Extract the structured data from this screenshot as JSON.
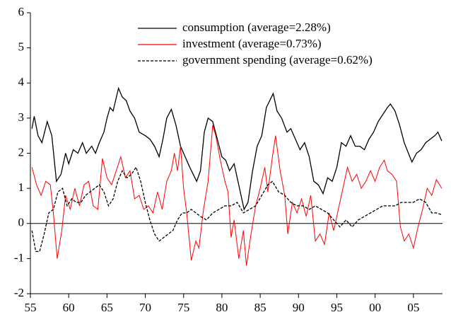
{
  "chart_data": {
    "type": "line",
    "xlim": [
      1955,
      2008.8
    ],
    "xticks": [
      {
        "value": 1955,
        "label": "55"
      },
      {
        "value": 1960,
        "label": "60"
      },
      {
        "value": 1965,
        "label": "65"
      },
      {
        "value": 1970,
        "label": "70"
      },
      {
        "value": 1975,
        "label": "75"
      },
      {
        "value": 1980,
        "label": "80"
      },
      {
        "value": 1985,
        "label": "85"
      },
      {
        "value": 1990,
        "label": "90"
      },
      {
        "value": 1995,
        "label": "95"
      },
      {
        "value": 2000,
        "label": "00"
      },
      {
        "value": 2005,
        "label": "05"
      }
    ],
    "ylim": [
      -2,
      6
    ],
    "yticks": [
      -2,
      -1,
      0,
      1,
      2,
      3,
      4,
      5,
      6
    ],
    "zero_line": true,
    "legend": "top-center",
    "series": [
      {
        "name": "consumption (average=2.28%)",
        "color": "#000000",
        "linestyle": "solid",
        "x": [
          1955.2,
          1955.5,
          1956,
          1956.5,
          1957.2,
          1957.8,
          1958.4,
          1959,
          1959.6,
          1960,
          1960.6,
          1961.2,
          1961.8,
          1962.3,
          1963,
          1963.5,
          1964,
          1964.6,
          1965,
          1965.4,
          1965.8,
          1966.5,
          1967,
          1967.5,
          1968,
          1968.6,
          1969.2,
          1970,
          1970.6,
          1971.2,
          1971.8,
          1972.3,
          1972.8,
          1973.4,
          1974,
          1974.6,
          1975.2,
          1975.8,
          1976.7,
          1977.2,
          1977.7,
          1978.2,
          1978.8,
          1979.4,
          1980,
          1980.5,
          1981,
          1981.6,
          1982.3,
          1982.9,
          1983.4,
          1984,
          1984.6,
          1985.2,
          1985.8,
          1986.7,
          1987.2,
          1987.8,
          1988.5,
          1989,
          1989.6,
          1990.2,
          1990.8,
          1991.4,
          1992,
          1992.6,
          1993.2,
          1993.8,
          1994.4,
          1995,
          1995.6,
          1996.2,
          1996.8,
          1997.4,
          1998,
          1998.6,
          1999.2,
          1999.8,
          2000.4,
          2001,
          2001.6,
          2002,
          2002.6,
          2003.2,
          2003.8,
          2004.8,
          2005.4,
          2006,
          2006.6,
          2007.2,
          2007.8,
          2008.2,
          2008.7
        ],
        "values": [
          2.7,
          3.05,
          2.5,
          2.3,
          2.9,
          2.5,
          1.2,
          1.4,
          2.0,
          1.7,
          2.1,
          2.0,
          2.3,
          2.0,
          2.2,
          2.0,
          2.3,
          2.6,
          3.0,
          3.3,
          3.2,
          3.85,
          3.6,
          3.5,
          3.2,
          3.0,
          2.6,
          2.5,
          2.4,
          2.2,
          1.9,
          2.4,
          3.0,
          3.25,
          2.8,
          2.2,
          1.9,
          1.6,
          1.2,
          1.5,
          2.6,
          3.0,
          2.9,
          2.4,
          1.9,
          1.8,
          1.5,
          1.7,
          1.0,
          0.4,
          0.6,
          1.5,
          2.2,
          2.5,
          3.3,
          3.7,
          3.2,
          3.0,
          2.6,
          2.7,
          2.4,
          2.1,
          2.3,
          1.9,
          1.2,
          1.1,
          0.85,
          1.3,
          1.2,
          1.6,
          2.3,
          2.2,
          2.5,
          2.2,
          2.2,
          2.1,
          2.4,
          2.6,
          2.9,
          3.1,
          3.3,
          3.4,
          3.2,
          2.8,
          2.3,
          1.75,
          2.0,
          2.1,
          2.3,
          2.4,
          2.5,
          2.6,
          2.35
        ]
      },
      {
        "name": "investment (average=0.73%)",
        "color": "#ff0000",
        "linestyle": "solid",
        "x": [
          1955.2,
          1955.8,
          1956.4,
          1957,
          1957.6,
          1958,
          1958.5,
          1959.1,
          1959.6,
          1960.2,
          1960.8,
          1961.4,
          1962,
          1962.6,
          1963.2,
          1963.8,
          1964.4,
          1965,
          1965.6,
          1966.2,
          1966.8,
          1967.4,
          1968,
          1968.6,
          1969.2,
          1969.8,
          1970.4,
          1971,
          1971.6,
          1972.2,
          1972.8,
          1973.4,
          1973.8,
          1974.2,
          1974.6,
          1975,
          1975.4,
          1976,
          1976.6,
          1977,
          1977.6,
          1978.2,
          1978.8,
          1979.2,
          1979.8,
          1980.4,
          1980.8,
          1981.2,
          1981.6,
          1982.2,
          1982.8,
          1983.2,
          1983.8,
          1984.4,
          1985,
          1985.6,
          1986,
          1986.6,
          1987,
          1987.6,
          1988.2,
          1988.6,
          1989.2,
          1989.8,
          1990.4,
          1991,
          1991.6,
          1992.2,
          1992.8,
          1993.4,
          1994,
          1994.6,
          1995.2,
          1995.8,
          1996.4,
          1997,
          1997.6,
          1998.2,
          1998.8,
          1999.4,
          2000,
          2000.6,
          2001.2,
          2001.6,
          2002.2,
          2002.8,
          2003.3,
          2003.8,
          2004.4,
          2005,
          2005.6,
          2006.2,
          2006.8,
          2007.4,
          2008,
          2008.7
        ],
        "values": [
          1.6,
          1.1,
          0.8,
          1.2,
          1.1,
          0.3,
          -1.0,
          -0.2,
          0.8,
          0.4,
          1.0,
          0.5,
          1.1,
          1.2,
          0.5,
          0.4,
          1.85,
          1.3,
          1.1,
          1.5,
          1.9,
          1.3,
          1.5,
          0.7,
          0.8,
          0.4,
          0.5,
          0.3,
          0.9,
          0.4,
          1.2,
          1.5,
          2.0,
          1.5,
          2.2,
          1.0,
          0.3,
          -1.05,
          -0.5,
          -0.7,
          0.4,
          1.2,
          2.8,
          2.5,
          1.8,
          1.2,
          0.9,
          -0.4,
          0.1,
          -1.0,
          -0.2,
          -1.2,
          -0.3,
          0.5,
          1.0,
          1.6,
          0.9,
          1.9,
          2.5,
          1.5,
          0.8,
          -0.3,
          0.6,
          0.3,
          0.7,
          0.2,
          0.8,
          -0.5,
          -0.3,
          -0.6,
          0.3,
          -0.2,
          0.4,
          1.0,
          1.6,
          1.2,
          1.4,
          1.0,
          1.2,
          1.5,
          1.2,
          1.6,
          1.8,
          1.5,
          1.4,
          1.2,
          -0.1,
          -0.5,
          -0.3,
          -0.7,
          -0.1,
          0.4,
          1.0,
          0.8,
          1.25,
          1.0
        ]
      },
      {
        "name": "government spending (average=0.62%)",
        "color": "#000000",
        "linestyle": "dashed",
        "x": [
          1955.2,
          1955.7,
          1956.2,
          1956.8,
          1957.4,
          1958,
          1958.6,
          1959.2,
          1959.8,
          1960.4,
          1961,
          1961.6,
          1962.2,
          1962.8,
          1963.4,
          1964,
          1964.6,
          1965.2,
          1965.8,
          1966.4,
          1967,
          1967.6,
          1968.2,
          1968.8,
          1969.4,
          1970,
          1970.6,
          1971.2,
          1971.8,
          1972.4,
          1973,
          1973.6,
          1974.2,
          1974.8,
          1975.4,
          1976,
          1976.6,
          1977.2,
          1978,
          1978.8,
          1979.6,
          1980.4,
          1981.2,
          1982,
          1982.8,
          1983.6,
          1984.4,
          1985.2,
          1986,
          1986.6,
          1987.4,
          1988.2,
          1989,
          1989.8,
          1990.6,
          1991.4,
          1992.2,
          1993,
          1993.8,
          1994.6,
          1995.4,
          1996.2,
          1997,
          1997.8,
          1998.6,
          1999.4,
          2000.2,
          2001,
          2001.8,
          2002.6,
          2003.4,
          2004.2,
          2005,
          2005.8,
          2006.6,
          2007.4,
          2008,
          2008.7
        ],
        "values": [
          -0.2,
          -0.8,
          -0.8,
          -0.3,
          0.3,
          0.4,
          0.9,
          1.0,
          0.5,
          0.7,
          0.6,
          0.6,
          0.8,
          0.9,
          1.0,
          1.1,
          0.9,
          0.5,
          0.7,
          1.2,
          1.5,
          1.3,
          1.4,
          1.6,
          1.2,
          0.6,
          0.1,
          -0.3,
          -0.5,
          -0.4,
          -0.3,
          -0.2,
          0.1,
          0.3,
          0.3,
          0.4,
          0.3,
          0.2,
          0.1,
          0.3,
          0.4,
          0.5,
          0.5,
          0.6,
          0.3,
          0.4,
          0.5,
          0.8,
          1.1,
          1.2,
          0.9,
          0.8,
          0.6,
          0.5,
          0.5,
          0.4,
          0.5,
          0.4,
          0.3,
          0.1,
          -0.1,
          0.1,
          -0.1,
          0.1,
          0.2,
          0.3,
          0.4,
          0.5,
          0.5,
          0.5,
          0.6,
          0.6,
          0.6,
          0.7,
          0.6,
          0.3,
          0.3,
          0.25
        ]
      }
    ]
  }
}
